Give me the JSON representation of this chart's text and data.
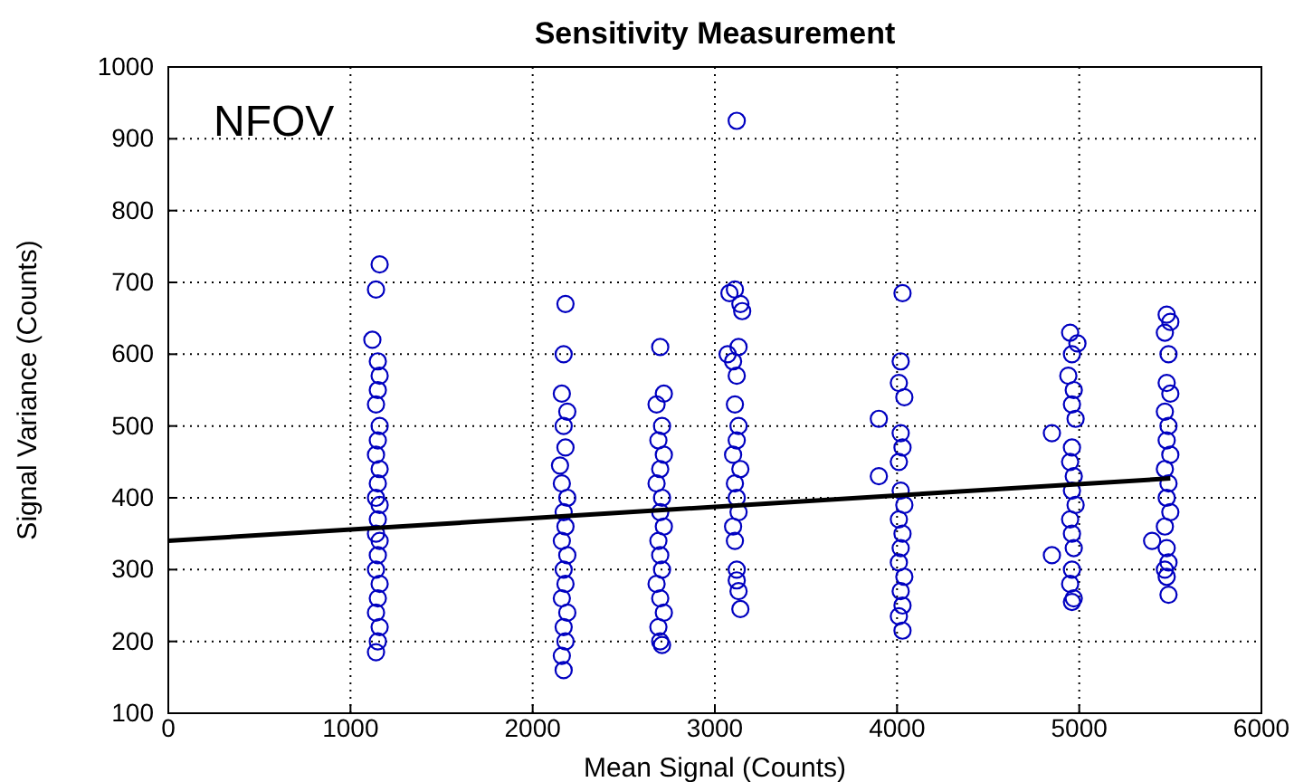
{
  "chart_data": {
    "type": "scatter",
    "title": "Sensitivity Measurement",
    "xlabel": "Mean Signal (Counts)",
    "ylabel": "Signal Variance (Counts)",
    "annotations": [
      "NFOV"
    ],
    "xlim": [
      0,
      6000
    ],
    "xticks": [
      0,
      1000,
      2000,
      3000,
      4000,
      5000,
      6000
    ],
    "ylim": [
      100,
      1000
    ],
    "yticks": [
      100,
      200,
      300,
      400,
      500,
      600,
      700,
      800,
      900,
      1000
    ],
    "grid": true,
    "series": [
      {
        "color": "#0000c0",
        "marker": "circle",
        "x": [
          1160,
          1140,
          1120,
          1150,
          1160,
          1150,
          1140,
          1160,
          1150,
          1140,
          1160,
          1150,
          1140,
          1160,
          1150,
          1140,
          1160,
          1150,
          1140,
          1160,
          1150,
          1140,
          1160,
          1150,
          1140,
          2180,
          2170,
          2160,
          2190,
          2170,
          2180,
          2150,
          2160,
          2190,
          2170,
          2180,
          2160,
          2190,
          2170,
          2180,
          2160,
          2190,
          2170,
          2180,
          2160,
          2170,
          2700,
          2720,
          2680,
          2710,
          2690,
          2720,
          2700,
          2680,
          2710,
          2700,
          2720,
          2690,
          2700,
          2710,
          2680,
          2700,
          2720,
          2690,
          2700,
          2710,
          3120,
          3110,
          3080,
          3140,
          3150,
          3130,
          3070,
          3100,
          3120,
          3110,
          3130,
          3120,
          3100,
          3140,
          3110,
          3120,
          3130,
          3100,
          3110,
          3120,
          3120,
          3130,
          3140,
          4030,
          4020,
          4010,
          4040,
          3900,
          4020,
          4030,
          4010,
          3900,
          4020,
          4040,
          4010,
          4030,
          4020,
          4010,
          4040,
          4020,
          4030,
          4010,
          4030,
          4950,
          4990,
          4960,
          4940,
          4970,
          4960,
          4980,
          4850,
          4960,
          4950,
          4970,
          4960,
          4980,
          4950,
          4960,
          4970,
          4850,
          4960,
          4950,
          4970,
          4960,
          5480,
          5500,
          5470,
          5490,
          5480,
          5500,
          5470,
          5490,
          5480,
          5500,
          5470,
          5490,
          5480,
          5500,
          5470,
          5400,
          5480,
          5490,
          5470,
          5480,
          5490
        ],
        "values": [
          725,
          690,
          620,
          590,
          570,
          550,
          530,
          500,
          480,
          460,
          440,
          420,
          400,
          390,
          370,
          350,
          340,
          320,
          300,
          280,
          260,
          240,
          220,
          200,
          185,
          670,
          600,
          545,
          520,
          500,
          470,
          445,
          420,
          400,
          380,
          360,
          340,
          320,
          300,
          280,
          260,
          240,
          220,
          200,
          180,
          160,
          610,
          545,
          530,
          500,
          480,
          460,
          440,
          420,
          400,
          380,
          360,
          340,
          320,
          300,
          280,
          260,
          240,
          220,
          200,
          195,
          925,
          690,
          685,
          670,
          660,
          610,
          600,
          590,
          570,
          530,
          500,
          480,
          460,
          440,
          420,
          400,
          380,
          360,
          340,
          300,
          285,
          270,
          245,
          685,
          590,
          560,
          540,
          510,
          490,
          470,
          450,
          430,
          410,
          390,
          370,
          350,
          330,
          310,
          290,
          270,
          250,
          235,
          215,
          630,
          615,
          600,
          570,
          550,
          530,
          510,
          490,
          470,
          450,
          430,
          410,
          390,
          370,
          350,
          330,
          320,
          300,
          280,
          260,
          255,
          655,
          645,
          630,
          600,
          560,
          545,
          520,
          500,
          480,
          460,
          440,
          420,
          400,
          380,
          360,
          340,
          330,
          310,
          300,
          290,
          265
        ]
      },
      {
        "type": "line",
        "color": "#000000",
        "x": [
          0,
          5500
        ],
        "values": [
          340,
          427
        ]
      }
    ]
  }
}
